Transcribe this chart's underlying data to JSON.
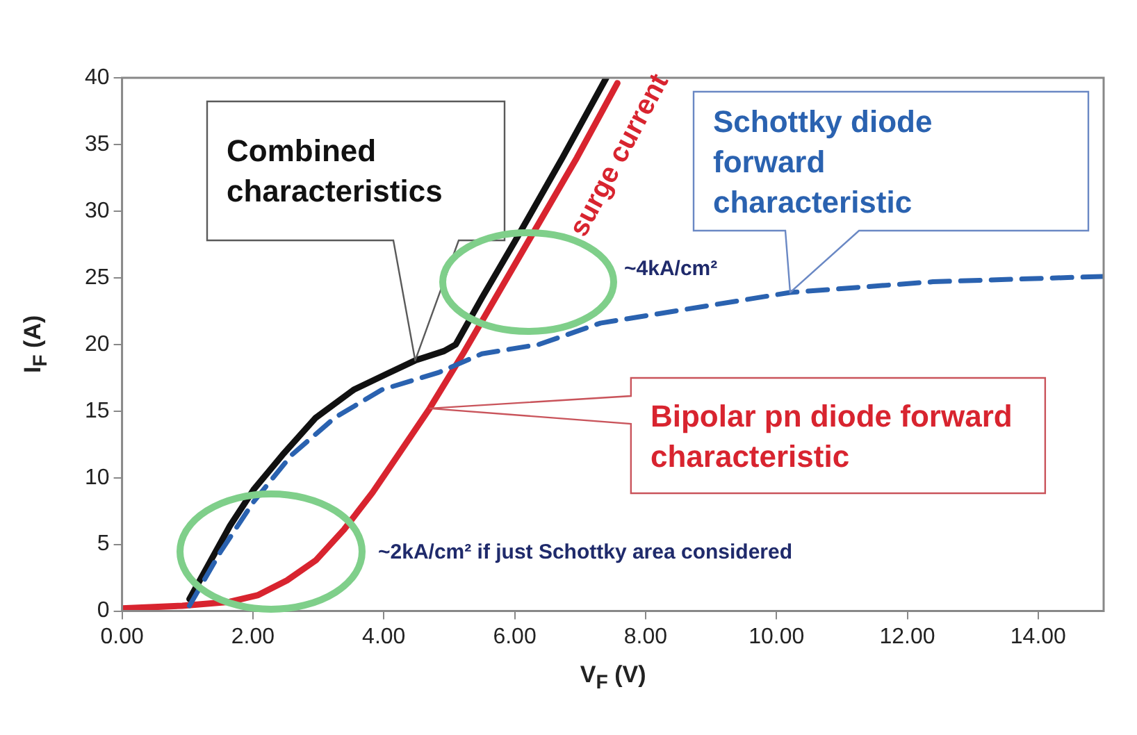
{
  "chart_data": {
    "type": "line",
    "xlabel": "V$_{F}$ (V)",
    "ylabel": "I$_{F}$ (A)",
    "xlim": [
      0,
      15
    ],
    "ylim": [
      0,
      40
    ],
    "xticks": [
      {
        "value": 0,
        "label": "0.00"
      },
      {
        "value": 2,
        "label": "2.00"
      },
      {
        "value": 4,
        "label": "4.00"
      },
      {
        "value": 6,
        "label": "6.00"
      },
      {
        "value": 8,
        "label": "8.00"
      },
      {
        "value": 10,
        "label": "10.00"
      },
      {
        "value": 12,
        "label": "12.00"
      },
      {
        "value": 14,
        "label": "14.00"
      }
    ],
    "yticks": [
      0,
      5,
      10,
      15,
      20,
      25,
      30,
      35,
      40
    ],
    "grid": false,
    "legend": false,
    "marker": "none",
    "series": [
      {
        "name": "Schottky diode forward characteristic",
        "color": "#2a62b0",
        "line_style": "dashed",
        "x": [
          1.03,
          1.5,
          2.01,
          2.59,
          3.25,
          3.97,
          4.84,
          5.5,
          6.37,
          7.31,
          10.21,
          12.39,
          15.0
        ],
        "values": [
          0.4,
          4.4,
          8.2,
          11.7,
          14.5,
          16.6,
          17.9,
          19.3,
          20.0,
          21.6,
          23.9,
          24.7,
          25.1
        ]
      },
      {
        "name": "Bipolar pn diode forward characteristic",
        "color": "#d8242f",
        "line_style": "solid",
        "x": [
          0,
          0.92,
          1.65,
          2.08,
          2.52,
          2.96,
          3.39,
          3.83,
          4.26,
          4.7,
          5.21,
          5.79,
          6.37,
          6.95,
          7.57
        ],
        "values": [
          0.2,
          0.4,
          0.7,
          1.2,
          2.3,
          3.8,
          6.1,
          8.9,
          12.0,
          15.2,
          19.3,
          24.2,
          29.1,
          34.0,
          39.6
        ]
      },
      {
        "name": "Combined characteristics",
        "color": "#111111",
        "line_style": "solid",
        "x": [
          1.03,
          1.65,
          2.01,
          2.45,
          2.96,
          3.54,
          4.05,
          4.48,
          4.92,
          5.1,
          5.5,
          6.0,
          6.73,
          7.4
        ],
        "values": [
          0.9,
          6.4,
          9.1,
          11.7,
          14.5,
          16.6,
          17.8,
          18.8,
          19.5,
          20.0,
          23.5,
          27.7,
          34.0,
          40.0
        ]
      }
    ],
    "annotations": [
      "surge current",
      "~4kA/cm²",
      "~2kA/cm² if just Schottky area considered"
    ]
  }
}
